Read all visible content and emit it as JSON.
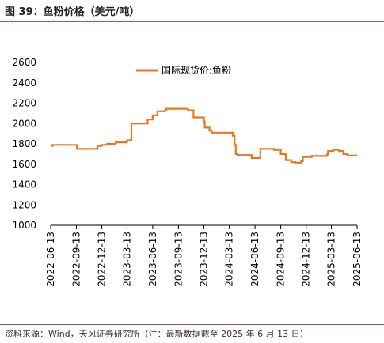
{
  "figure": {
    "title": "图 39：鱼粉价格（美元/吨）",
    "source": "资料来源：Wind，天风证券研究所（注：最新数据截至 2025 年 6 月 13 日）"
  },
  "colors": {
    "accent": "#c0504d",
    "series": "#e8781e"
  },
  "chart_data": {
    "type": "line",
    "step": true,
    "legend_position": "top-center",
    "ylim": [
      1000,
      2600
    ],
    "yticks": [
      1000,
      1200,
      1400,
      1600,
      1800,
      2000,
      2200,
      2400,
      2600
    ],
    "xlim": [
      "2022-06-13",
      "2025-06-13"
    ],
    "xticks": [
      "2022-06-13",
      "2022-09-13",
      "2022-12-13",
      "2023-03-13",
      "2023-06-13",
      "2023-09-13",
      "2023-12-13",
      "2024-03-13",
      "2024-06-13",
      "2024-09-13",
      "2024-12-13",
      "2025-03-13",
      "2025-06-13"
    ],
    "series": [
      {
        "name": "国际现货价:鱼粉",
        "points": [
          [
            "2022-06-13",
            1780
          ],
          [
            "2022-06-20",
            1790
          ],
          [
            "2022-09-13",
            1790
          ],
          [
            "2022-09-15",
            1750
          ],
          [
            "2022-11-25",
            1750
          ],
          [
            "2022-11-28",
            1780
          ],
          [
            "2022-12-13",
            1790
          ],
          [
            "2023-01-01",
            1800
          ],
          [
            "2023-02-01",
            1815
          ],
          [
            "2023-03-13",
            1835
          ],
          [
            "2023-03-28",
            1840
          ],
          [
            "2023-03-29",
            2000
          ],
          [
            "2023-05-25",
            2000
          ],
          [
            "2023-05-26",
            2040
          ],
          [
            "2023-06-13",
            2080
          ],
          [
            "2023-06-30",
            2120
          ],
          [
            "2023-07-25",
            2125
          ],
          [
            "2023-08-01",
            2145
          ],
          [
            "2023-10-16",
            2145
          ],
          [
            "2023-10-17",
            2130
          ],
          [
            "2023-11-05",
            2130
          ],
          [
            "2023-11-06",
            2060
          ],
          [
            "2023-12-13",
            2020
          ],
          [
            "2023-12-16",
            1960
          ],
          [
            "2024-01-02",
            1930
          ],
          [
            "2024-01-10",
            1910
          ],
          [
            "2024-03-13",
            1910
          ],
          [
            "2024-03-25",
            1880
          ],
          [
            "2024-04-01",
            1790
          ],
          [
            "2024-04-05",
            1700
          ],
          [
            "2024-04-12",
            1690
          ],
          [
            "2024-05-30",
            1690
          ],
          [
            "2024-06-01",
            1660
          ],
          [
            "2024-07-01",
            1660
          ],
          [
            "2024-07-02",
            1750
          ],
          [
            "2024-08-20",
            1740
          ],
          [
            "2024-09-13",
            1700
          ],
          [
            "2024-10-01",
            1640
          ],
          [
            "2024-10-20",
            1620
          ],
          [
            "2024-11-05",
            1615
          ],
          [
            "2024-11-25",
            1630
          ],
          [
            "2024-12-01",
            1670
          ],
          [
            "2024-12-31",
            1670
          ],
          [
            "2025-01-02",
            1680
          ],
          [
            "2025-02-25",
            1695
          ],
          [
            "2025-03-01",
            1730
          ],
          [
            "2025-03-20",
            1740
          ],
          [
            "2025-04-10",
            1730
          ],
          [
            "2025-04-25",
            1700
          ],
          [
            "2025-05-10",
            1685
          ],
          [
            "2025-06-13",
            1685
          ]
        ]
      }
    ]
  }
}
